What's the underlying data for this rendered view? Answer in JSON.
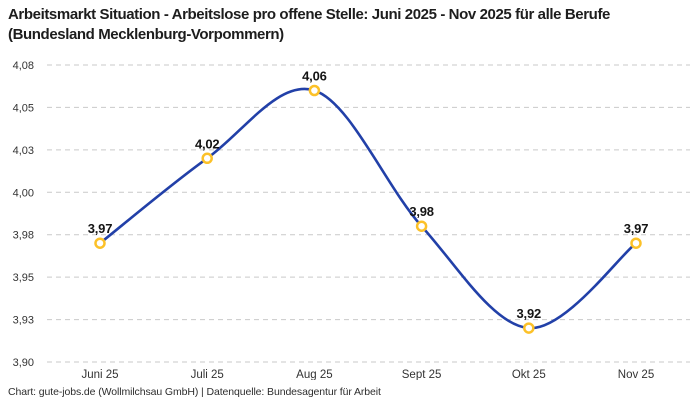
{
  "header": {
    "title": "Arbeitsmarkt Situation - Arbeitslose pro offene Stelle: Juni 2025 - Nov 2025 für alle Berufe (Bundesland Mecklenburg-Vorpommern)"
  },
  "footer": {
    "text": "Chart: gute-jobs.de (Wollmilchsau GmbH) | Datenquelle: Bundesagentur für Arbeit"
  },
  "chart_data": {
    "type": "line",
    "title": "Arbeitsmarkt Situation - Arbeitslose pro offene Stelle: Juni 2025 - Nov 2025 für alle Berufe (Bundesland Mecklenburg-Vorpommern)",
    "categories": [
      "Juni 25",
      "Juli 25",
      "Aug 25",
      "Sept 25",
      "Okt 25",
      "Nov 25"
    ],
    "values": [
      3.97,
      4.02,
      4.06,
      3.98,
      3.92,
      3.97
    ],
    "point_labels": [
      "3,97",
      "4,02",
      "4,06",
      "3,98",
      "3,92",
      "3,97"
    ],
    "y_ticks": [
      {
        "value": 3.9,
        "label": "3,90"
      },
      {
        "value": 3.925,
        "label": "3,93"
      },
      {
        "value": 3.95,
        "label": "3,95"
      },
      {
        "value": 3.975,
        "label": "3,98"
      },
      {
        "value": 4.0,
        "label": "4,00"
      },
      {
        "value": 4.025,
        "label": "4,03"
      },
      {
        "value": 4.05,
        "label": "4,05"
      },
      {
        "value": 4.075,
        "label": "4,08"
      }
    ],
    "ylim": [
      3.9,
      4.075
    ],
    "xlabel": "",
    "ylabel": "",
    "legend": "none",
    "grid": "horizontal-dashed",
    "line_smooth": true,
    "colors": {
      "line": "#2240a8",
      "marker_ring": "#fcc128",
      "marker_fill": "#ffffff",
      "grid": "#c9c9c9",
      "title_text": "#1d1d1d",
      "axis_text": "#333333"
    }
  }
}
